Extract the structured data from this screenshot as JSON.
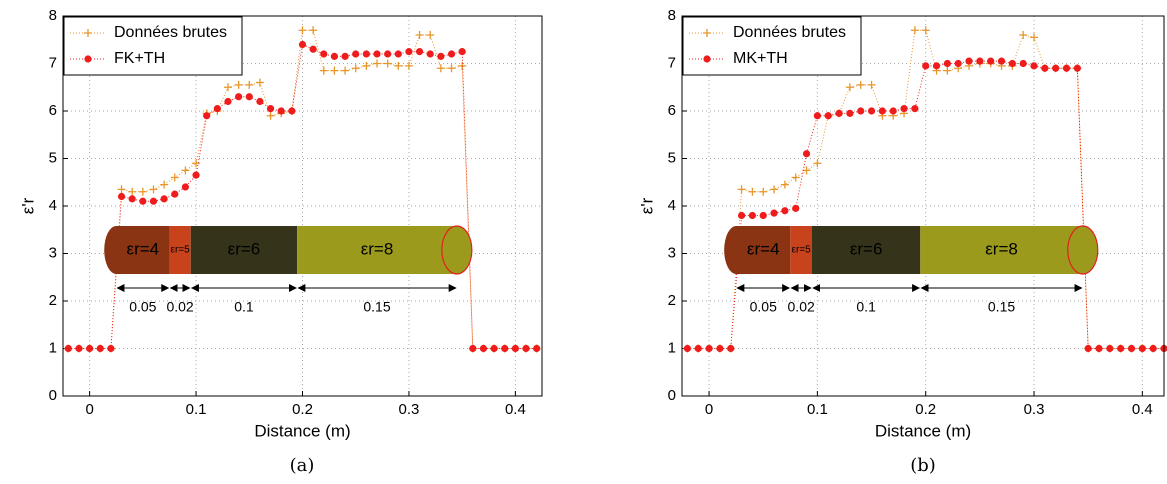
{
  "chart_data": [
    {
      "type": "line",
      "caption": "(a)",
      "xlabel": "Distance (m)",
      "ylabel": "ε'r",
      "xlim": [
        -0.025,
        0.425
      ],
      "ylim": [
        0,
        8
      ],
      "xticks": [
        0,
        0.1,
        0.2,
        0.3,
        0.4
      ],
      "yticks": [
        0,
        1,
        2,
        3,
        4,
        5,
        6,
        7,
        8
      ],
      "grid": true,
      "legend": "upper left",
      "x": [
        -0.02,
        -0.01,
        0,
        0.01,
        0.02,
        0.03,
        0.04,
        0.05,
        0.06,
        0.07,
        0.08,
        0.09,
        0.1,
        0.11,
        0.12,
        0.13,
        0.14,
        0.15,
        0.16,
        0.17,
        0.18,
        0.19,
        0.2,
        0.21,
        0.22,
        0.23,
        0.24,
        0.25,
        0.26,
        0.27,
        0.28,
        0.29,
        0.3,
        0.31,
        0.32,
        0.33,
        0.34,
        0.35,
        0.36,
        0.37,
        0.38,
        0.39,
        0.4,
        0.41,
        0.42
      ],
      "series": [
        {
          "name": "Données brutes",
          "color": "#e8962a",
          "marker": "plus",
          "values": [
            1,
            1,
            1,
            1,
            1,
            4.35,
            4.3,
            4.3,
            4.35,
            4.45,
            4.6,
            4.75,
            4.9,
            5.95,
            6.0,
            6.5,
            6.55,
            6.55,
            6.6,
            5.9,
            5.95,
            6.0,
            7.7,
            7.7,
            6.85,
            6.85,
            6.85,
            6.9,
            6.95,
            7.0,
            7.0,
            6.95,
            6.95,
            7.6,
            7.6,
            6.9,
            6.9,
            6.95,
            1,
            1,
            1,
            1,
            1,
            1,
            1
          ]
        },
        {
          "name": "FK+TH",
          "color": "#ee1c1c",
          "marker": "circle",
          "values": [
            1,
            1,
            1,
            1,
            1,
            4.2,
            4.15,
            4.1,
            4.1,
            4.15,
            4.25,
            4.4,
            4.65,
            5.9,
            6.05,
            6.2,
            6.3,
            6.3,
            6.2,
            6.05,
            6.0,
            6.0,
            7.4,
            7.3,
            7.2,
            7.15,
            7.15,
            7.2,
            7.2,
            7.2,
            7.2,
            7.2,
            7.25,
            7.25,
            7.2,
            7.15,
            7.2,
            7.25,
            1,
            1,
            1,
            1,
            1,
            1,
            1
          ]
        }
      ],
      "segments": [
        {
          "label": "εr=4",
          "length": 0.05,
          "color": "#8b3413"
        },
        {
          "label": "εr=5",
          "length": 0.02,
          "color": "#c8421c"
        },
        {
          "label": "εr=6",
          "length": 0.1,
          "color": "#35341a"
        },
        {
          "label": "εr=8",
          "length": 0.15,
          "color": "#9c9a1c"
        }
      ]
    },
    {
      "type": "line",
      "caption": "(b)",
      "xlabel": "Distance (m)",
      "ylabel": "ε'r",
      "xlim": [
        -0.025,
        0.42
      ],
      "ylim": [
        0,
        8
      ],
      "xticks": [
        0,
        0.1,
        0.2,
        0.3,
        0.4
      ],
      "yticks": [
        0,
        1,
        2,
        3,
        4,
        5,
        6,
        7,
        8
      ],
      "grid": true,
      "legend": "upper left",
      "x": [
        -0.02,
        -0.01,
        0,
        0.01,
        0.02,
        0.03,
        0.04,
        0.05,
        0.06,
        0.07,
        0.08,
        0.09,
        0.1,
        0.11,
        0.12,
        0.13,
        0.14,
        0.15,
        0.16,
        0.17,
        0.18,
        0.19,
        0.2,
        0.21,
        0.22,
        0.23,
        0.24,
        0.25,
        0.26,
        0.27,
        0.28,
        0.29,
        0.3,
        0.31,
        0.32,
        0.33,
        0.34,
        0.35,
        0.36,
        0.37,
        0.38,
        0.39,
        0.4,
        0.41,
        0.42
      ],
      "series": [
        {
          "name": "Données brutes",
          "color": "#e8962a",
          "marker": "plus",
          "values": [
            1,
            1,
            1,
            1,
            1,
            4.35,
            4.3,
            4.3,
            4.35,
            4.45,
            4.6,
            4.75,
            4.9,
            5.9,
            5.95,
            6.5,
            6.55,
            6.55,
            5.9,
            5.9,
            5.95,
            7.7,
            7.7,
            6.85,
            6.85,
            6.9,
            6.95,
            7.0,
            7.0,
            6.95,
            6.95,
            7.6,
            7.55,
            6.9,
            6.9,
            6.9,
            6.9,
            1,
            1,
            1,
            1,
            1,
            1,
            1,
            1
          ]
        },
        {
          "name": "MK+TH",
          "color": "#ee1c1c",
          "marker": "circle",
          "values": [
            1,
            1,
            1,
            1,
            1,
            3.8,
            3.8,
            3.8,
            3.85,
            3.9,
            3.95,
            5.1,
            5.9,
            5.9,
            5.95,
            5.95,
            6.0,
            6.0,
            6.0,
            6.0,
            6.05,
            6.05,
            6.95,
            6.95,
            7.0,
            7.0,
            7.05,
            7.05,
            7.05,
            7.05,
            7.0,
            7.0,
            6.95,
            6.9,
            6.9,
            6.9,
            6.9,
            1,
            1,
            1,
            1,
            1,
            1,
            1,
            1
          ]
        }
      ],
      "segments": [
        {
          "label": "εr=4",
          "length": 0.05,
          "color": "#8b3413"
        },
        {
          "label": "εr=5",
          "length": 0.02,
          "color": "#c8421c"
        },
        {
          "label": "εr=6",
          "length": 0.1,
          "color": "#35341a"
        },
        {
          "label": "εr=8",
          "length": 0.15,
          "color": "#9c9a1c"
        }
      ]
    }
  ]
}
